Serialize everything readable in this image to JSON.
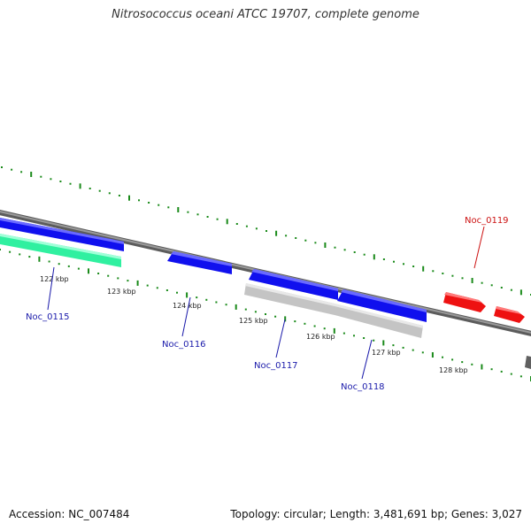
{
  "title": "Nitrosococcus oceani ATCC 19707, complete genome",
  "footer": {
    "accession": "Accession: NC_007484",
    "stats": "Topology: circular; Length: 3,481,691 bp; Genes: 3,027"
  },
  "colors": {
    "backbone": "#808080",
    "tick": "#1a8a1a",
    "gene_forward": "#1010ee",
    "gene_rna": "#ee1111",
    "gene_cds_reverse": "#30f0a0",
    "gene_gray": "#c4c4c4",
    "gene_dark": "#606060",
    "label_blue": "#1a1aaa",
    "label_red": "#cc1111"
  },
  "kbp_labels": [
    "122 kbp",
    "123 kbp",
    "124 kbp",
    "125 kbp",
    "126 kbp",
    "127 kbp",
    "128 kbp"
  ],
  "gene_labels": [
    {
      "text": "Noc_0115",
      "color": "label_blue"
    },
    {
      "text": "Noc_0116",
      "color": "label_blue"
    },
    {
      "text": "Noc_0117",
      "color": "label_blue"
    },
    {
      "text": "Noc_0118",
      "color": "label_blue"
    },
    {
      "text": "Noc_0119",
      "color": "label_red"
    }
  ]
}
